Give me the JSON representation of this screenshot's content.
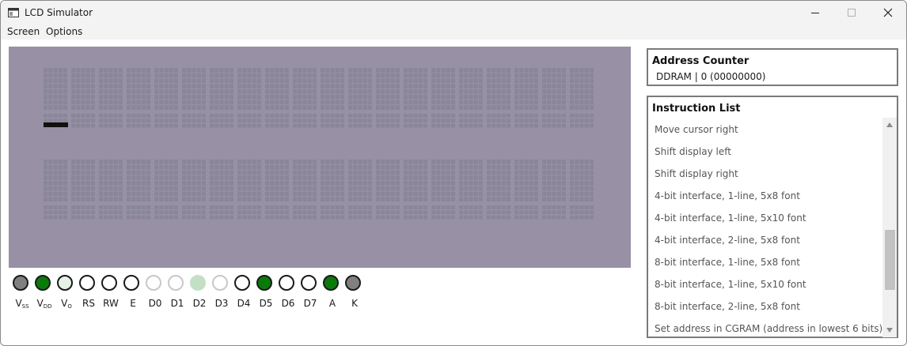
{
  "window": {
    "title": "LCD Simulator",
    "app_icon": "window-app-icon",
    "controls": [
      "minimize-icon",
      "maximize-icon",
      "close-icon"
    ]
  },
  "menu": {
    "items": [
      "Screen",
      "Options"
    ]
  },
  "lcd": {
    "columns": 20,
    "rows": 2,
    "background": "#9891a5",
    "pixel_color": "#8a869a",
    "cursor_color": "#111111",
    "cursor": {
      "row": 0,
      "col": 0
    }
  },
  "pins": [
    {
      "name": "V",
      "sub": "SS",
      "state": "gray"
    },
    {
      "name": "V",
      "sub": "DD",
      "state": "on"
    },
    {
      "name": "V",
      "sub": "O",
      "state": "pale"
    },
    {
      "name": "RS",
      "sub": "",
      "state": "off"
    },
    {
      "name": "RW",
      "sub": "",
      "state": "off"
    },
    {
      "name": "E",
      "sub": "",
      "state": "off"
    },
    {
      "name": "D0",
      "sub": "",
      "state": "dim"
    },
    {
      "name": "D1",
      "sub": "",
      "state": "dim"
    },
    {
      "name": "D2",
      "sub": "",
      "state": "dimgreen"
    },
    {
      "name": "D3",
      "sub": "",
      "state": "dim"
    },
    {
      "name": "D4",
      "sub": "",
      "state": "off"
    },
    {
      "name": "D5",
      "sub": "",
      "state": "on"
    },
    {
      "name": "D6",
      "sub": "",
      "state": "off"
    },
    {
      "name": "D7",
      "sub": "",
      "state": "off"
    },
    {
      "name": "A",
      "sub": "",
      "state": "on"
    },
    {
      "name": "K",
      "sub": "",
      "state": "gray"
    }
  ],
  "pin_colors": {
    "on": "#0a7a0a",
    "gray": "#808080",
    "pale": "#e6f2e6",
    "off": "#ffffff",
    "dim": "#ffffff",
    "dimgreen": "#c4e0c4"
  },
  "address_counter": {
    "title": "Address Counter",
    "value": "DDRAM | 0 (00000000)"
  },
  "instruction_list": {
    "title": "Instruction List",
    "items": [
      "Move cursor right",
      "Shift display left",
      "Shift display right",
      "4-bit interface, 1-line, 5x8 font",
      "4-bit interface, 1-line, 5x10 font",
      "4-bit interface, 2-line, 5x8 font",
      "8-bit interface, 1-line, 5x8 font",
      "8-bit interface, 1-line, 5x10 font",
      "8-bit interface, 2-line, 5x8 font",
      "Set address in CGRAM (address in lowest 6 bits)"
    ],
    "scroll_position": 0.62
  }
}
